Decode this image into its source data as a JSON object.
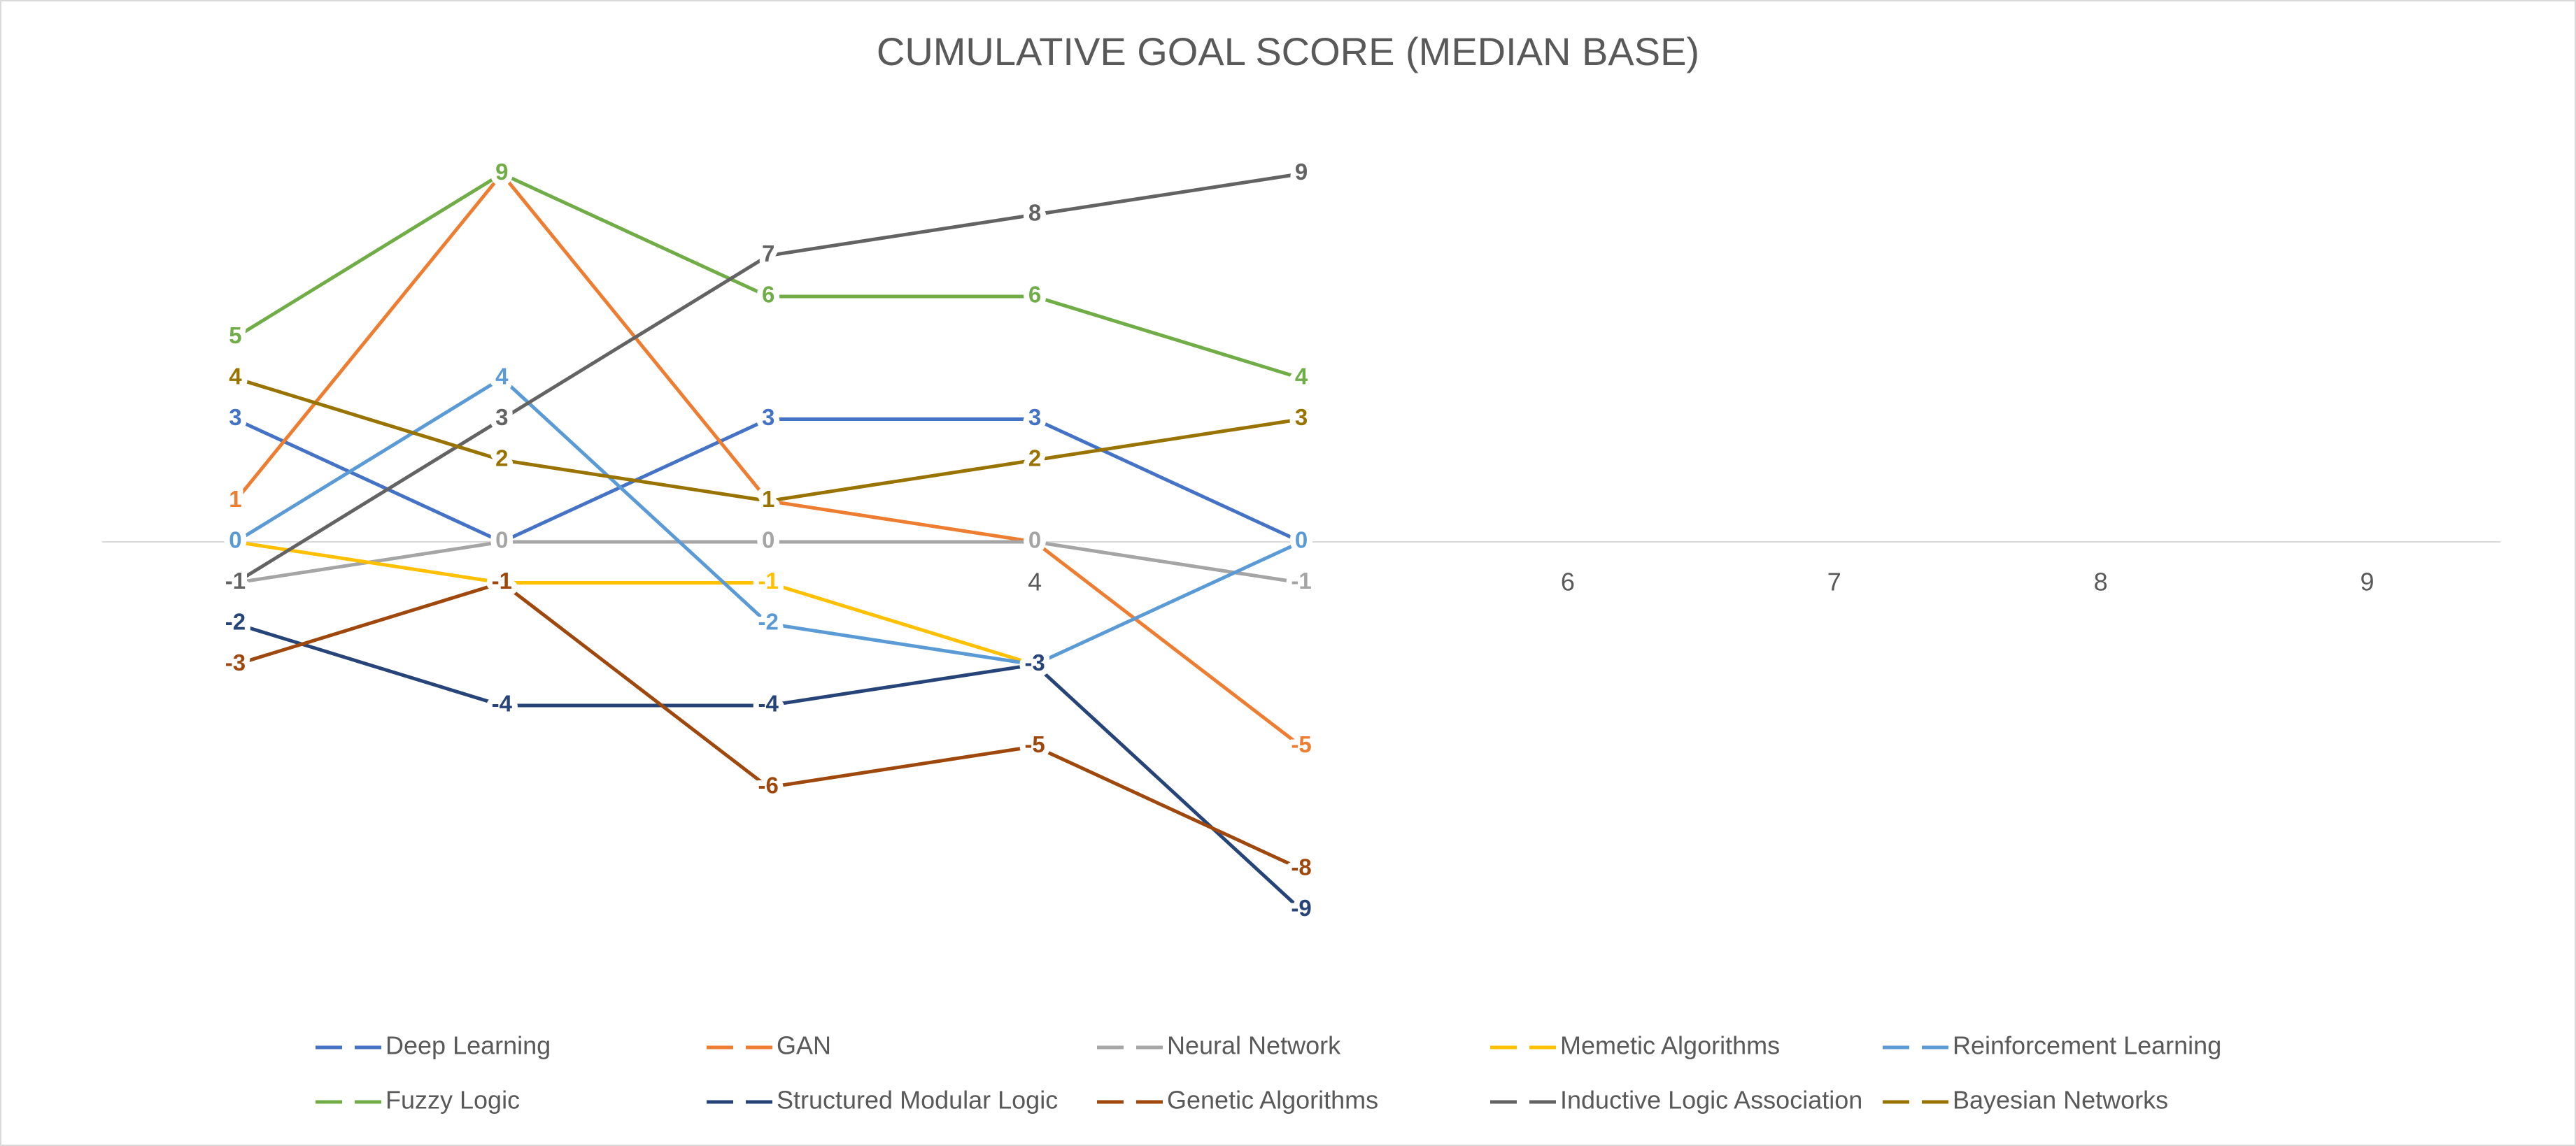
{
  "chart_data": {
    "type": "line",
    "title": "CUMULATIVE GOAL SCORE (MEDIAN BASE)",
    "categories": [
      "1",
      "2",
      "3",
      "4",
      "5",
      "6",
      "7",
      "8",
      "9"
    ],
    "ylim": [
      -10,
      10
    ],
    "series": [
      {
        "name": "Deep Learning",
        "color": "#4472c4",
        "values": [
          3,
          0,
          3,
          3,
          0,
          null,
          null,
          null,
          null
        ]
      },
      {
        "name": "GAN",
        "color": "#ed7d31",
        "values": [
          1,
          9,
          1,
          0,
          -5,
          null,
          null,
          null,
          null
        ]
      },
      {
        "name": "Neural Network",
        "color": "#a5a5a5",
        "values": [
          -1,
          0,
          0,
          0,
          -1,
          null,
          null,
          null,
          null
        ]
      },
      {
        "name": "Memetic Algorithms",
        "color": "#ffc000",
        "values": [
          0,
          -1,
          -1,
          -3,
          null,
          null,
          null,
          null,
          null
        ]
      },
      {
        "name": "Reinforcement Learning",
        "color": "#5b9bd5",
        "values": [
          0,
          4,
          -2,
          -3,
          0,
          null,
          null,
          null,
          null
        ]
      },
      {
        "name": "Fuzzy Logic",
        "color": "#70ad47",
        "values": [
          5,
          9,
          6,
          6,
          4,
          null,
          null,
          null,
          null
        ]
      },
      {
        "name": "Structured Modular Logic",
        "color": "#264478",
        "values": [
          -2,
          -4,
          -4,
          -3,
          -9,
          null,
          null,
          null,
          null
        ]
      },
      {
        "name": "Genetic Algorithms",
        "color": "#9e480e",
        "values": [
          -3,
          -1,
          -6,
          -5,
          -8,
          null,
          null,
          null,
          null
        ]
      },
      {
        "name": "Inductive Logic Association",
        "color": "#636363",
        "values": [
          -1,
          3,
          7,
          8,
          9,
          null,
          null,
          null,
          null
        ]
      },
      {
        "name": "Bayesian Networks",
        "color": "#997300",
        "values": [
          4,
          2,
          1,
          2,
          3,
          null,
          null,
          null,
          null
        ]
      }
    ]
  }
}
